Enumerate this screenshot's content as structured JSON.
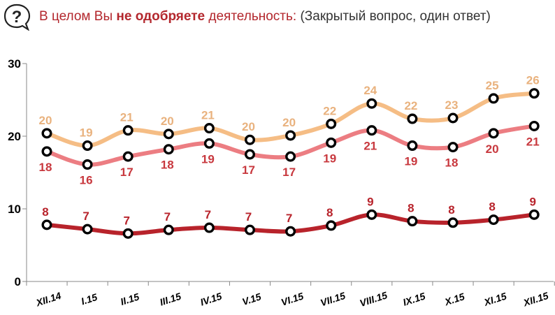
{
  "header": {
    "icon": "question-bubble-icon",
    "title_pre": "В целом Вы ",
    "title_bold": "не одобряете",
    "title_post": " деятельность:",
    "title_note": " (Закрытый вопрос, один ответ)"
  },
  "chart_data": {
    "type": "line",
    "categories": [
      "XII.14",
      "I.15",
      "II.15",
      "III.15",
      "IV.15",
      "V.15",
      "VI.15",
      "VII.15",
      "VIII.15",
      "IX.15",
      "X.15",
      "XI.15",
      "XII.15"
    ],
    "ylim": [
      0,
      30
    ],
    "yticks": [
      0,
      10,
      20,
      30
    ],
    "grid": false,
    "series": [
      {
        "color": "#f5bd85",
        "label_color": "#e9b27e",
        "label_pos": "above",
        "values": [
          20,
          19,
          21,
          20,
          21,
          20,
          20,
          22,
          24,
          22,
          23,
          25,
          26
        ],
        "plot_values": [
          20.4,
          18.7,
          20.8,
          20.3,
          21.1,
          19.5,
          20.1,
          21.7,
          24.5,
          22.4,
          22.5,
          25.2,
          25.9
        ]
      },
      {
        "color": "#ec7d82",
        "label_color": "#c8383e",
        "label_pos": "below",
        "values": [
          18,
          16,
          17,
          18,
          19,
          17,
          17,
          19,
          21,
          19,
          18,
          20,
          21
        ],
        "plot_values": [
          17.9,
          16.1,
          17.2,
          18.2,
          19.0,
          17.5,
          17.2,
          19.1,
          20.8,
          18.7,
          18.5,
          20.4,
          21.4
        ]
      },
      {
        "color": "#b8232b",
        "label_color": "#b8232b",
        "label_pos": "above",
        "values": [
          8,
          7,
          7,
          7,
          7,
          7,
          7,
          8,
          9,
          8,
          8,
          8,
          9
        ],
        "plot_values": [
          7.8,
          7.2,
          6.6,
          7.1,
          7.4,
          7.1,
          6.9,
          7.7,
          9.2,
          8.3,
          8.1,
          8.5,
          9.2
        ]
      }
    ]
  }
}
